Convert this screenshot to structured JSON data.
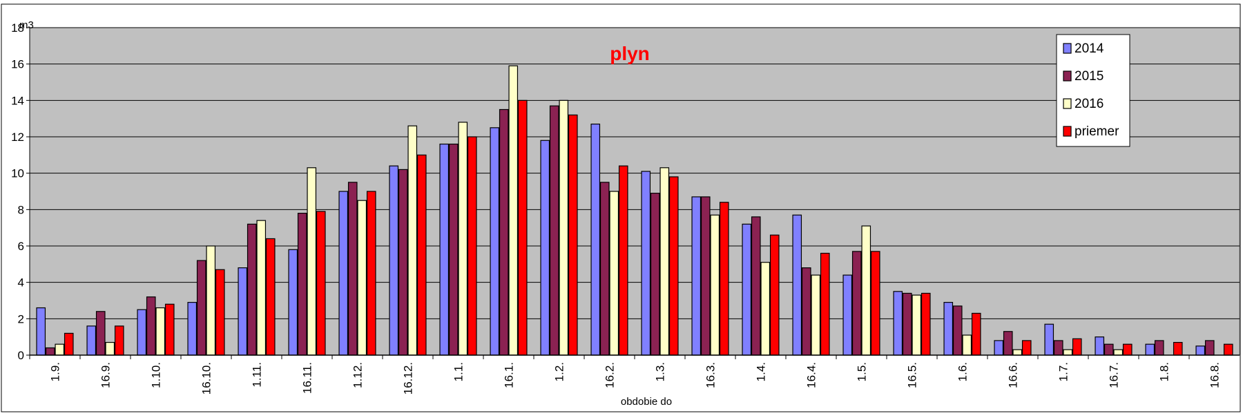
{
  "chart_data": {
    "type": "bar",
    "title": "plyn",
    "ylabel": "m3",
    "xlabel": "obdobie do",
    "ylim": [
      0,
      18
    ],
    "y_ticks": [
      0,
      2,
      4,
      6,
      8,
      10,
      12,
      14,
      16,
      18
    ],
    "grid": true,
    "legend_position": "top-right",
    "categories": [
      "1.9.",
      "16.9.",
      "1.10.",
      "16.10.",
      "1.11.",
      "16.11.",
      "1.12.",
      "16.12.",
      "1.1.",
      "16.1.",
      "1.2.",
      "16.2.",
      "1.3.",
      "16.3.",
      "1.4.",
      "16.4.",
      "1.5.",
      "16.5.",
      "1.6.",
      "16.6.",
      "1.7.",
      "16.7.",
      "1.8.",
      "16.8."
    ],
    "series": [
      {
        "name": "2014",
        "color": "#8080ff",
        "values": [
          2.6,
          1.6,
          2.5,
          2.9,
          4.8,
          5.8,
          9.0,
          10.4,
          11.6,
          12.5,
          11.8,
          12.7,
          10.1,
          8.7,
          7.2,
          7.7,
          4.4,
          3.5,
          2.9,
          0.8,
          1.7,
          1.0,
          0.6,
          0.5
        ]
      },
      {
        "name": "2015",
        "color": "#8b2252",
        "values": [
          0.4,
          2.4,
          3.2,
          5.2,
          7.2,
          7.8,
          9.5,
          10.2,
          11.6,
          13.5,
          13.7,
          9.5,
          8.9,
          8.7,
          7.6,
          4.8,
          5.7,
          3.4,
          2.7,
          1.3,
          0.8,
          0.6,
          0.8,
          0.8
        ]
      },
      {
        "name": "2016",
        "color": "#ffffc8",
        "values": [
          0.6,
          0.7,
          2.6,
          6.0,
          7.4,
          10.3,
          8.5,
          12.6,
          12.8,
          15.9,
          14.0,
          9.0,
          10.3,
          7.7,
          5.1,
          4.4,
          7.1,
          3.3,
          1.1,
          0.3,
          0.3,
          0.3,
          0,
          0
        ]
      },
      {
        "name": "priemer",
        "color": "#ff0000",
        "values": [
          1.2,
          1.6,
          2.8,
          4.7,
          6.4,
          7.9,
          9.0,
          11.0,
          12.0,
          14.0,
          13.2,
          10.4,
          9.8,
          8.4,
          6.6,
          5.6,
          5.7,
          3.4,
          2.3,
          0.8,
          0.9,
          0.6,
          0.7,
          0.6
        ]
      }
    ]
  },
  "colors": {
    "plot_background": "#c0c0c0",
    "title_color": "#ff0000",
    "gridline": "#000000"
  }
}
